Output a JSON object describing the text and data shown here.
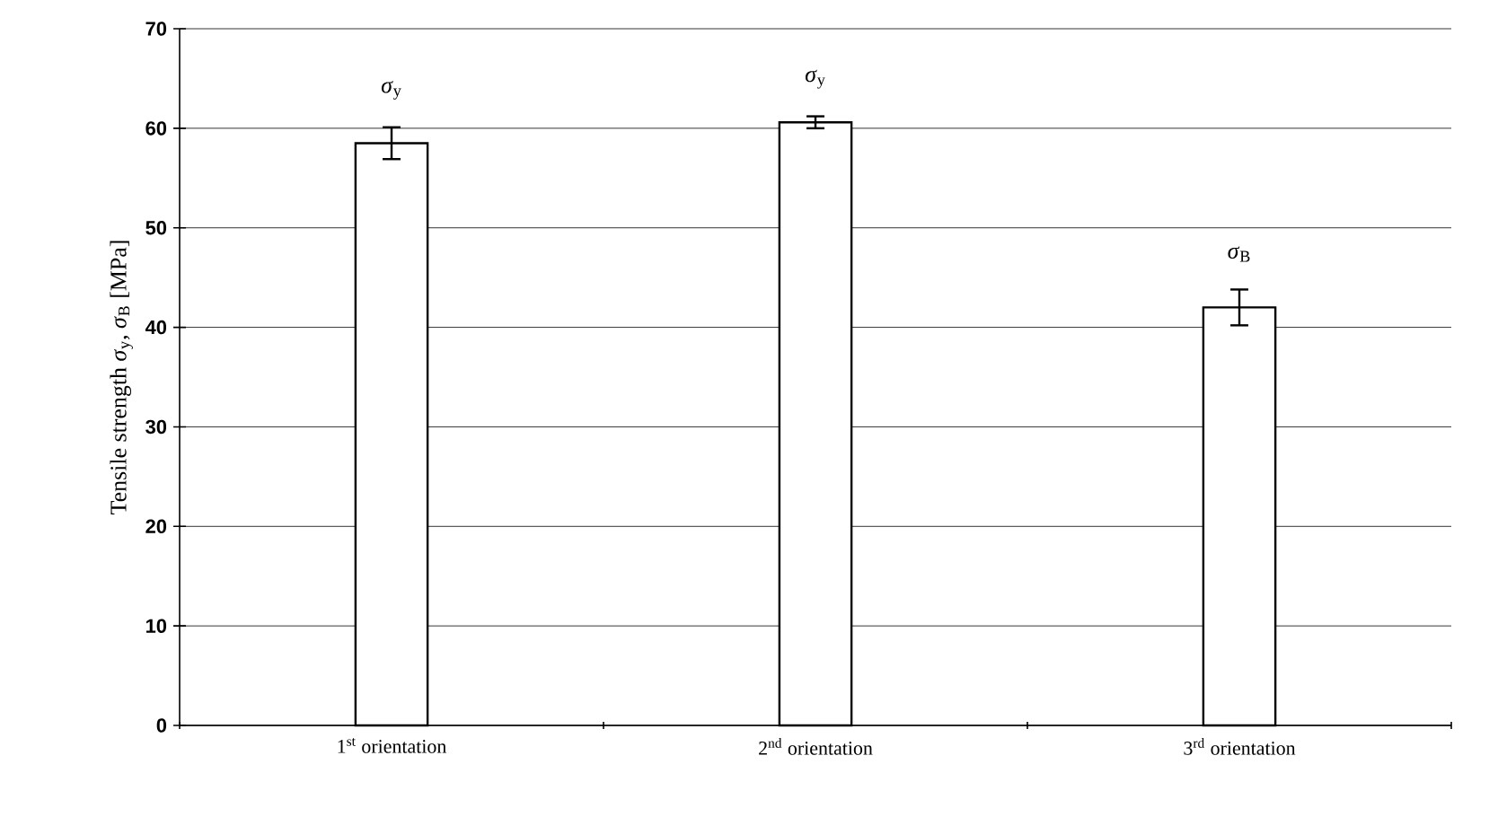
{
  "chart_data": {
    "type": "bar",
    "categories": [
      "1$^{st}$ orientation",
      "2$^{nd}$ orientation",
      "3$^{rd}$ orientation"
    ],
    "values": [
      58.5,
      60.6,
      42.0
    ],
    "errors": [
      1.6,
      0.6,
      1.8
    ],
    "color": "#ffffff",
    "ylabel": "Tensile strength *σ*$_{y}$, *σ*$_{B}$ [MPa]",
    "ylim": [
      0,
      70
    ],
    "yticks": [
      0,
      10,
      20,
      30,
      40,
      50,
      60,
      70
    ],
    "grid": "y",
    "annotations": [
      "*σ*$_{y}$",
      "*σ*$_{y}$",
      "*σ*$_{B}$"
    ]
  }
}
